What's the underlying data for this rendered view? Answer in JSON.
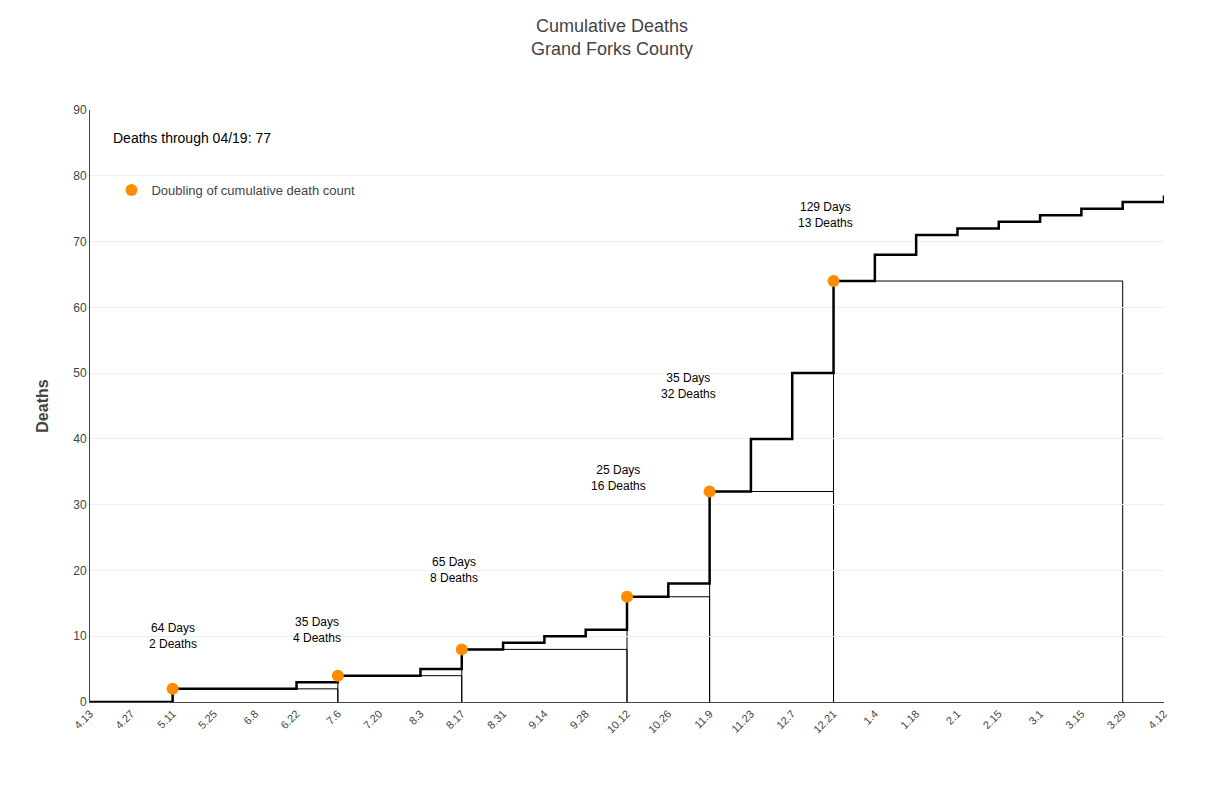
{
  "chart_data": {
    "type": "step",
    "title": "Cumulative Deaths",
    "subtitle": "Grand Forks County",
    "ylabel": "Deaths",
    "note": "Deaths through 04/19: 77",
    "categories": [
      "4.13",
      "4.27",
      "5.11",
      "5.25",
      "6.8",
      "6.22",
      "7.6",
      "7.20",
      "8.3",
      "8.17",
      "8.31",
      "9.14",
      "9.28",
      "10.12",
      "10.26",
      "11.9",
      "11.23",
      "12.7",
      "12.21",
      "1.4",
      "1.18",
      "2.1",
      "2.15",
      "3.1",
      "3.15",
      "3.29",
      "4.12"
    ],
    "values": [
      0,
      0,
      2,
      2,
      2,
      3,
      4,
      4,
      5,
      8,
      9,
      10,
      11,
      16,
      18,
      32,
      40,
      50,
      64,
      68,
      71,
      72,
      73,
      74,
      75,
      76,
      77
    ],
    "color": "#000000",
    "doubling_points": {
      "name": "Doubling of cumulative death count",
      "color": "#FF8C00",
      "marker": "circle",
      "points": [
        {
          "x": "5.11",
          "y": 2
        },
        {
          "x": "7.6",
          "y": 4
        },
        {
          "x": "8.17",
          "y": 8
        },
        {
          "x": "10.12",
          "y": 16
        },
        {
          "x": "11.9",
          "y": 32
        },
        {
          "x": "12.21",
          "y": 64
        }
      ]
    },
    "doubling_boxes": {
      "color": "#000000",
      "boxes": [
        {
          "x0": "5.11",
          "x1": "7.6",
          "y": 2
        },
        {
          "x0": "7.6",
          "x1": "8.17",
          "y": 4
        },
        {
          "x0": "8.17",
          "x1": "10.12",
          "y": 8
        },
        {
          "x0": "10.12",
          "x1": "11.9",
          "y": 16
        },
        {
          "x0": "11.9",
          "x1": "12.21",
          "y": 32
        },
        {
          "x0": "12.21",
          "x1": "3.29",
          "y": 64
        }
      ]
    },
    "annotations": [
      {
        "x": 2.0,
        "y": 10,
        "text": "64 Days\n2 Deaths"
      },
      {
        "x": 5.5,
        "y": 11,
        "text": "35 Days\n4 Deaths"
      },
      {
        "x": 8.8,
        "y": 20,
        "text": "65 Days\n8 Deaths"
      },
      {
        "x": 12.8,
        "y": 34,
        "text": "25 Days\n16 Deaths"
      },
      {
        "x": 14.5,
        "y": 48,
        "text": "35 Days\n32 Deaths"
      },
      {
        "x": 17.8,
        "y": 74,
        "text": "129 Days\n13 Deaths"
      }
    ],
    "ylim": [
      0,
      90
    ],
    "yticks": [
      0,
      10,
      20,
      30,
      40,
      50,
      60,
      70,
      80,
      90
    ],
    "grid": true,
    "legend": "upper left"
  }
}
